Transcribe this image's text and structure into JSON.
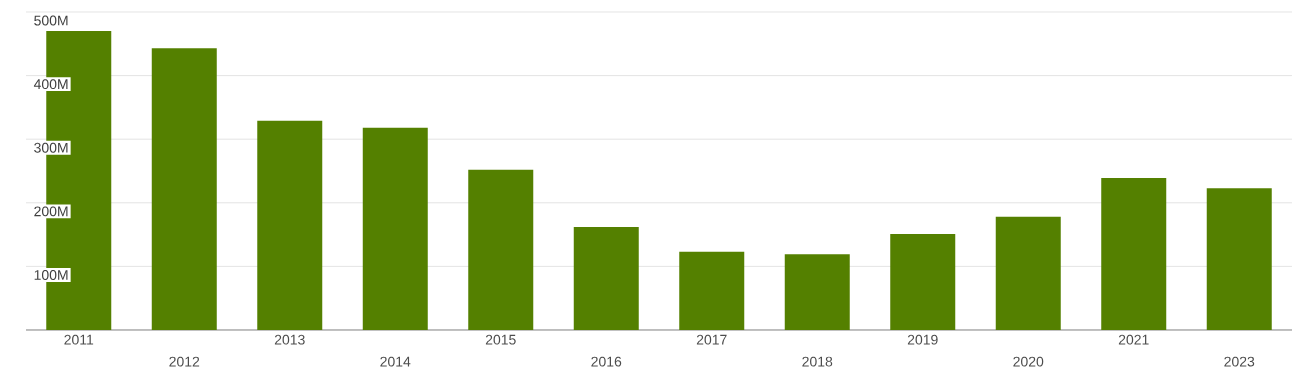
{
  "chart_data": {
    "type": "bar",
    "categories": [
      "2011",
      "2012",
      "2013",
      "2014",
      "2015",
      "2016",
      "2017",
      "2018",
      "2019",
      "2020",
      "2021",
      "2023"
    ],
    "values": [
      470,
      443,
      329,
      318,
      252,
      162,
      123,
      119,
      151,
      178,
      239,
      223
    ],
    "color": "#548000",
    "ylim": [
      0,
      500
    ],
    "yticks": [
      {
        "value": 0,
        "label": null
      },
      {
        "value": 100,
        "label": "100M"
      },
      {
        "value": 200,
        "label": "200M"
      },
      {
        "value": 300,
        "label": "300M"
      },
      {
        "value": 400,
        "label": "400M"
      },
      {
        "value": 500,
        "label": "500M"
      }
    ],
    "grid": "y"
  }
}
